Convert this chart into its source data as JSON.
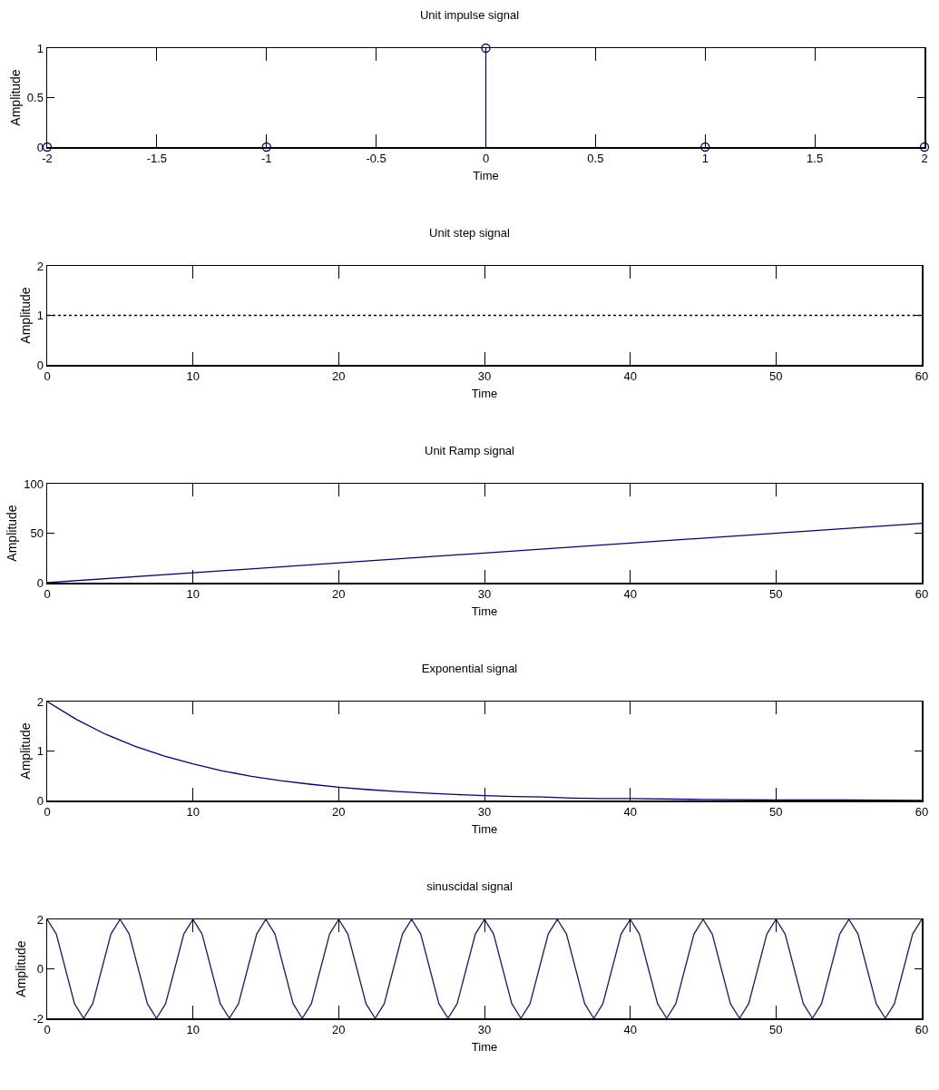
{
  "chart_data": [
    {
      "type": "lollipop",
      "title": "Unit impulse signal",
      "xlabel": "Time",
      "ylabel": "Amplitude",
      "x": [
        -2,
        -1,
        0,
        1,
        2
      ],
      "values": [
        0,
        0,
        1,
        0,
        0
      ],
      "color": "#00007f",
      "marker": "circle",
      "xlim": [
        -2,
        2
      ],
      "xticks": [
        -2,
        -1.5,
        -1,
        -0.5,
        0,
        0.5,
        1,
        1.5,
        2
      ],
      "ylim": [
        0,
        1
      ],
      "yticks": [
        0,
        0.5,
        1
      ]
    },
    {
      "type": "line",
      "title": "Unit step signal",
      "xlabel": "Time",
      "ylabel": "Amplitude",
      "x": [
        0,
        60
      ],
      "values": [
        1,
        1
      ],
      "color": "#000040",
      "line_style": "dotted",
      "xlim": [
        0,
        60
      ],
      "xticks": [
        0,
        10,
        20,
        30,
        40,
        50,
        60
      ],
      "ylim": [
        0,
        2
      ],
      "yticks": [
        0,
        1,
        2
      ]
    },
    {
      "type": "line",
      "title": "Unit Ramp signal",
      "xlabel": "Time",
      "ylabel": "Amplitude",
      "x": [
        0,
        60
      ],
      "values": [
        0,
        60
      ],
      "color": "#00007f",
      "line_style": "solid",
      "xlim": [
        0,
        60
      ],
      "xticks": [
        0,
        10,
        20,
        30,
        40,
        50,
        60
      ],
      "ylim": [
        0,
        100
      ],
      "yticks": [
        0,
        50,
        100
      ]
    },
    {
      "type": "line",
      "title": "Exponential signal",
      "xlabel": "Time",
      "ylabel": "Amplitude",
      "x": [
        0,
        2,
        4,
        6,
        8,
        10,
        12,
        14,
        16,
        18,
        20,
        22,
        24,
        26,
        28,
        30,
        32,
        34,
        36,
        38,
        40,
        45,
        50,
        55,
        60
      ],
      "values": [
        2,
        1.64,
        1.34,
        1.1,
        0.9,
        0.74,
        0.6,
        0.49,
        0.4,
        0.33,
        0.27,
        0.22,
        0.18,
        0.15,
        0.12,
        0.1,
        0.08,
        0.07,
        0.05,
        0.04,
        0.04,
        0.02,
        0.01,
        0.01,
        0
      ],
      "color": "#00007f",
      "line_style": "solid",
      "xlim": [
        0,
        60
      ],
      "xticks": [
        0,
        10,
        20,
        30,
        40,
        50,
        60
      ],
      "ylim": [
        0,
        2
      ],
      "yticks": [
        0,
        1,
        2
      ]
    },
    {
      "type": "line",
      "title": "sinuscidal signal",
      "xlabel": "Time",
      "ylabel": "Amplitude",
      "x": [
        0,
        0.625,
        1.25,
        1.875,
        2.5,
        3.125,
        3.75,
        4.375,
        5,
        5.625,
        6.25,
        6.875,
        7.5,
        8.125,
        8.75,
        9.375,
        10,
        10.625,
        11.25,
        11.875,
        12.5,
        13.125,
        13.75,
        14.375,
        15,
        15.625,
        16.25,
        16.875,
        17.5,
        18.125,
        18.75,
        19.375,
        20,
        20.625,
        21.25,
        21.875,
        22.5,
        23.125,
        23.75,
        24.375,
        25,
        25.625,
        26.25,
        26.875,
        27.5,
        28.125,
        28.75,
        29.375,
        30,
        30.625,
        31.25,
        31.875,
        32.5,
        33.125,
        33.75,
        34.375,
        35,
        35.625,
        36.25,
        36.875,
        37.5,
        38.125,
        38.75,
        39.375,
        40,
        40.625,
        41.25,
        41.875,
        42.5,
        43.125,
        43.75,
        44.375,
        45,
        45.625,
        46.25,
        46.875,
        47.5,
        48.125,
        48.75,
        49.375,
        50,
        50.625,
        51.25,
        51.875,
        52.5,
        53.125,
        53.75,
        54.375,
        55,
        55.625,
        56.25,
        56.875,
        57.5,
        58.125,
        58.75,
        59.375,
        60
      ],
      "values": [
        2,
        1.41,
        0,
        -1.41,
        -2,
        -1.41,
        0,
        1.41,
        2,
        1.41,
        0,
        -1.41,
        -2,
        -1.41,
        0,
        1.41,
        2,
        1.41,
        0,
        -1.41,
        -2,
        -1.41,
        0,
        1.41,
        2,
        1.41,
        0,
        -1.41,
        -2,
        -1.41,
        0,
        1.41,
        2,
        1.41,
        0,
        -1.41,
        -2,
        -1.41,
        0,
        1.41,
        2,
        1.41,
        0,
        -1.41,
        -2,
        -1.41,
        0,
        1.41,
        2,
        1.41,
        0,
        -1.41,
        -2,
        -1.41,
        0,
        1.41,
        2,
        1.41,
        0,
        -1.41,
        -2,
        -1.41,
        0,
        1.41,
        2,
        1.41,
        0,
        -1.41,
        -2,
        -1.41,
        0,
        1.41,
        2,
        1.41,
        0,
        -1.41,
        -2,
        -1.41,
        0,
        1.41,
        2,
        1.41,
        0,
        -1.41,
        -2,
        -1.41,
        0,
        1.41,
        2,
        1.41,
        0,
        -1.41,
        -2,
        -1.41,
        0,
        1.41,
        2
      ],
      "color": "#1a1a80",
      "line_style": "solid",
      "xlim": [
        0,
        60
      ],
      "xticks": [
        0,
        10,
        20,
        30,
        40,
        50,
        60
      ],
      "ylim": [
        -2,
        2
      ],
      "yticks": [
        -2,
        0,
        2
      ]
    }
  ]
}
